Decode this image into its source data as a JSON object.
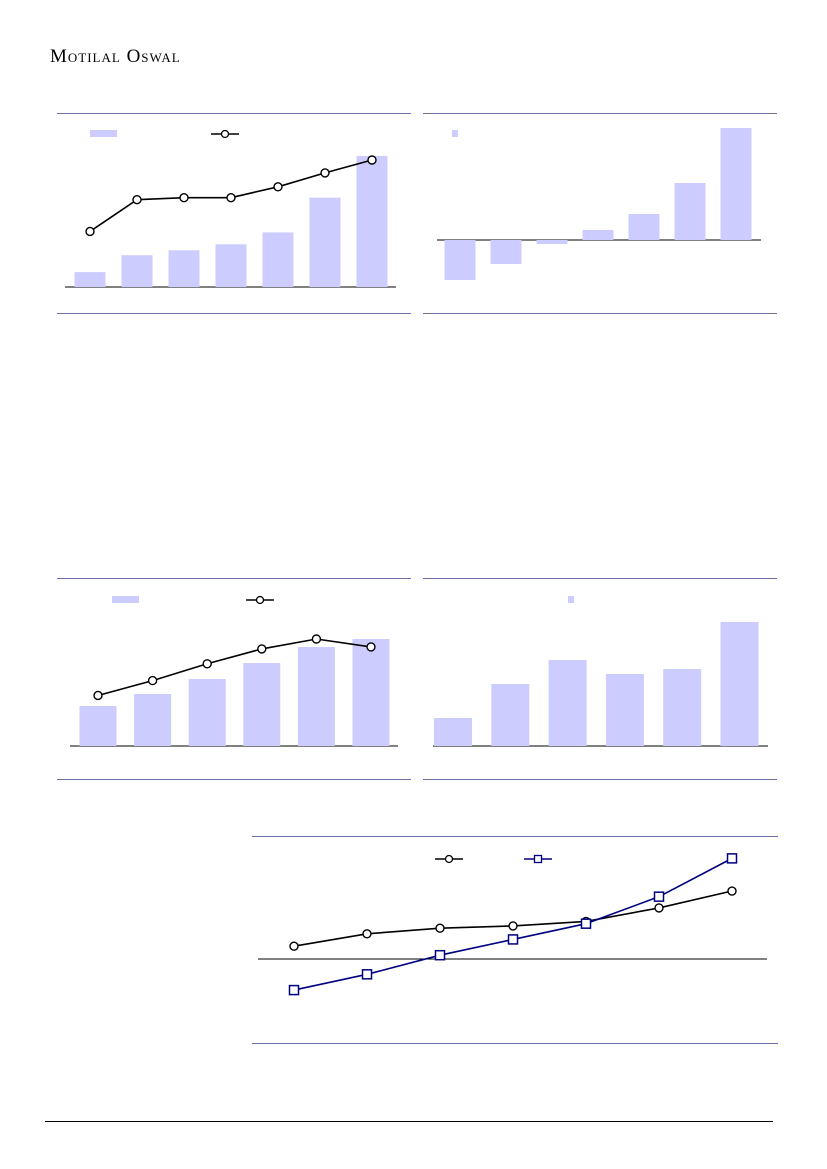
{
  "header": {
    "brand": "Motilal Oswal"
  },
  "colors": {
    "bar": "#ccccff",
    "line": "#000000",
    "line2": "#000080",
    "rule": "#6f6fa8"
  },
  "chart_data": [
    {
      "type": "bar",
      "series": [
        {
          "kind": "bar",
          "values": [
            15,
            32,
            37,
            43,
            55,
            90,
            132
          ]
        },
        {
          "kind": "line",
          "marker": "circle",
          "values": [
            0.56,
            0.88,
            0.9,
            0.9,
            1.01,
            1.15,
            1.28
          ]
        }
      ],
      "ylim": [
        0,
        132
      ],
      "y2lim": [
        0,
        1.28
      ]
    },
    {
      "type": "bar",
      "series": [
        {
          "kind": "bar",
          "values": [
            -40,
            -24,
            -4,
            10,
            26,
            57,
            112
          ]
        }
      ],
      "ylim": [
        -48,
        112
      ]
    },
    {
      "type": "bar",
      "series": [
        {
          "kind": "bar",
          "values": [
            40,
            52,
            67,
            83,
            99,
            107
          ]
        },
        {
          "kind": "line",
          "marker": "circle",
          "values": [
            0.51,
            0.66,
            0.83,
            0.98,
            1.08,
            1.0
          ]
        }
      ],
      "ylim": [
        0,
        107
      ],
      "y2lim": [
        0,
        1.08
      ]
    },
    {
      "type": "bar",
      "series": [
        {
          "kind": "bar",
          "values": [
            28,
            62,
            86,
            72,
            77,
            124
          ]
        }
      ],
      "ylim": [
        0,
        124
      ]
    },
    {
      "type": "line",
      "series": [
        {
          "marker": "circle",
          "values": [
            3,
            14,
            19,
            21,
            25,
            37,
            52
          ]
        },
        {
          "marker": "square",
          "values": [
            -36,
            -22,
            -5,
            9,
            23,
            47,
            81
          ]
        }
      ],
      "ylim": [
        -83,
        100
      ]
    }
  ]
}
